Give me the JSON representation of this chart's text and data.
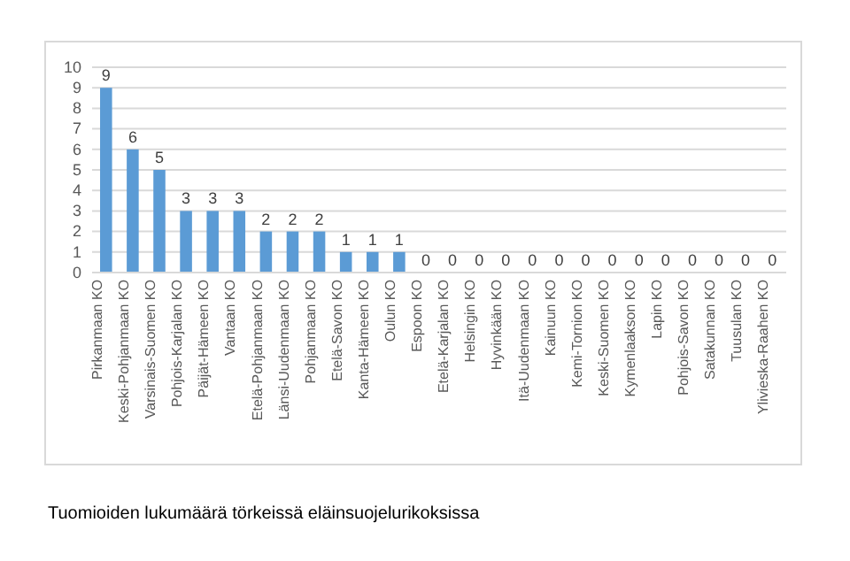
{
  "chart_data": {
    "type": "bar",
    "categories": [
      "Pirkanmaan KO",
      "Keski-Pohjanmaan KO",
      "Varsinais-Suomen KO",
      "Pohjois-Karjalan KO",
      "Päijät-Hämeen KO",
      "Vantaan KO",
      "Etelä-Pohjanmaan KO",
      "Länsi-Uudenmaan KO",
      "Pohjanmaan KO",
      "Etelä-Savon KO",
      "Kanta-Hämeen KO",
      "Oulun KO",
      "Espoon KO",
      "Etelä-Karjalan KO",
      "Helsingin KO",
      "Hyvinkään KO",
      "Itä-Uudenmaan KO",
      "Kainuun KO",
      "Kemi-Tornion KO",
      "Keski-Suomen KO",
      "Kymenlaakson KO",
      "Lapin KO",
      "Pohjois-Savon KO",
      "Satakunnan KO",
      "Tuusulan KO",
      "Ylivieska-Raahen KO"
    ],
    "values": [
      9,
      6,
      5,
      3,
      3,
      3,
      2,
      2,
      2,
      1,
      1,
      1,
      0,
      0,
      0,
      0,
      0,
      0,
      0,
      0,
      0,
      0,
      0,
      0,
      0,
      0
    ],
    "color": "#5b9bd5",
    "ylim": [
      0,
      10
    ],
    "yticks": [
      0,
      1,
      2,
      3,
      4,
      5,
      6,
      7,
      8,
      9,
      10
    ],
    "grid": "y",
    "data_labels": true,
    "annotations": [
      "Tuomioiden lukumäärä törkeissä eläinsuojelurikoksissa"
    ]
  }
}
